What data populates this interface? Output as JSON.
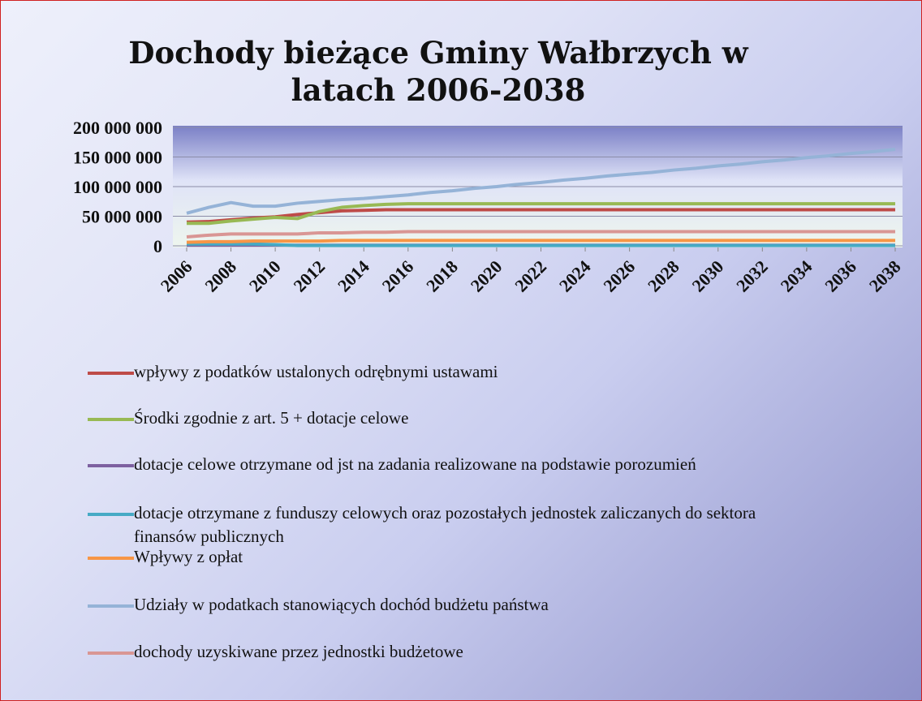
{
  "chart_data": {
    "type": "line",
    "title": "Dochody bieżące Gminy Wałbrzych w latach 2006-2038",
    "x": [
      2006,
      2007,
      2008,
      2009,
      2010,
      2011,
      2012,
      2013,
      2014,
      2015,
      2016,
      2017,
      2018,
      2019,
      2020,
      2021,
      2022,
      2023,
      2024,
      2025,
      2026,
      2027,
      2028,
      2029,
      2030,
      2031,
      2032,
      2033,
      2034,
      2035,
      2036,
      2037,
      2038
    ],
    "xlim": [
      2006,
      2038
    ],
    "xticks": [
      2006,
      2008,
      2010,
      2012,
      2014,
      2016,
      2018,
      2020,
      2022,
      2024,
      2026,
      2028,
      2030,
      2032,
      2034,
      2036,
      2038
    ],
    "ylim": [
      0,
      200000000
    ],
    "yticks": [
      0,
      {
        "value": 50000000,
        "label": "50 000 000"
      },
      {
        "value": 100000000,
        "label": "100 000 000"
      },
      {
        "value": 150000000,
        "label": "150 000 000"
      },
      {
        "value": 200000000,
        "label": "200 000 000"
      }
    ],
    "grid": true,
    "legend": "bottom",
    "series": [
      {
        "name": "wpływy z podatków ustalonych odrębnymi ustawami",
        "color": "#be4b48",
        "values": [
          40000000,
          41000000,
          44000000,
          47000000,
          49000000,
          53000000,
          56000000,
          59000000,
          60000000,
          61000000,
          61000000,
          61000000,
          61000000,
          61000000,
          61000000,
          61000000,
          61000000,
          61000000,
          61000000,
          61000000,
          61000000,
          61000000,
          61000000,
          61000000,
          61000000,
          61000000,
          61000000,
          61000000,
          61000000,
          61000000,
          61000000,
          61000000,
          61000000
        ]
      },
      {
        "name": "Środki zgodnie z art. 5 + dotacje celowe",
        "color": "#98b954",
        "values": [
          38000000,
          38000000,
          42000000,
          45000000,
          48000000,
          46000000,
          58000000,
          65000000,
          68000000,
          70000000,
          71000000,
          71000000,
          71000000,
          71000000,
          71000000,
          71000000,
          71000000,
          71000000,
          71000000,
          71000000,
          71000000,
          71000000,
          71000000,
          71000000,
          71000000,
          71000000,
          71000000,
          71000000,
          71000000,
          71000000,
          71000000,
          71000000,
          71000000
        ]
      },
      {
        "name": "dotacje celowe otrzymane od jst na zadania realizowane na podstawie porozumień",
        "color": "#7d60a0",
        "values": [
          1000000,
          1000000,
          1000000,
          1000000,
          1000000,
          1000000,
          1000000,
          1000000,
          1000000,
          1000000,
          1000000,
          1000000,
          1000000,
          1000000,
          1000000,
          1000000,
          1000000,
          1000000,
          1000000,
          1000000,
          1000000,
          1000000,
          1000000,
          1000000,
          1000000,
          1000000,
          1000000,
          1000000,
          1000000,
          1000000,
          1000000,
          1000000,
          1000000
        ]
      },
      {
        "name": "dotacje otrzymane z funduszy celowych oraz pozostałych jednostek zaliczanych do sektora finansów publicznych",
        "color": "#46aac5",
        "values": [
          3000000,
          3000000,
          3000000,
          3000000,
          2000000,
          500000,
          500000,
          500000,
          500000,
          500000,
          500000,
          500000,
          500000,
          500000,
          500000,
          500000,
          500000,
          500000,
          500000,
          500000,
          500000,
          500000,
          500000,
          500000,
          500000,
          500000,
          500000,
          500000,
          500000,
          500000,
          500000,
          500000,
          500000
        ]
      },
      {
        "name": "Wpływy z opłat",
        "color": "#f79646",
        "values": [
          6000000,
          7000000,
          7000000,
          8000000,
          8000000,
          8000000,
          8000000,
          9000000,
          9000000,
          9000000,
          9000000,
          9000000,
          9000000,
          9000000,
          9000000,
          9000000,
          9000000,
          9000000,
          9000000,
          9000000,
          9000000,
          9000000,
          9000000,
          9000000,
          9000000,
          9000000,
          9000000,
          9000000,
          9000000,
          9000000,
          9000000,
          9000000,
          9000000
        ]
      },
      {
        "name": "Udziały w podatkach stanowiących dochód budżetu państwa",
        "color": "#95b3d7",
        "values": [
          55000000,
          65000000,
          73000000,
          67000000,
          67000000,
          72000000,
          75000000,
          78000000,
          80000000,
          83000000,
          86000000,
          90000000,
          93000000,
          97000000,
          100000000,
          104000000,
          107000000,
          111000000,
          114000000,
          118000000,
          121000000,
          124000000,
          128000000,
          131000000,
          135000000,
          138000000,
          142000000,
          145000000,
          149000000,
          152000000,
          156000000,
          159000000,
          163000000
        ]
      },
      {
        "name": "dochody uzyskiwane przez jednostki budżetowe",
        "color": "#d99694",
        "values": [
          15000000,
          18000000,
          20000000,
          20000000,
          20000000,
          20000000,
          22000000,
          22000000,
          23000000,
          23000000,
          24000000,
          24000000,
          24000000,
          24000000,
          24000000,
          24000000,
          24000000,
          24000000,
          24000000,
          24000000,
          24000000,
          24000000,
          24000000,
          24000000,
          24000000,
          24000000,
          24000000,
          24000000,
          24000000,
          24000000,
          24000000,
          24000000,
          24000000
        ]
      }
    ]
  }
}
